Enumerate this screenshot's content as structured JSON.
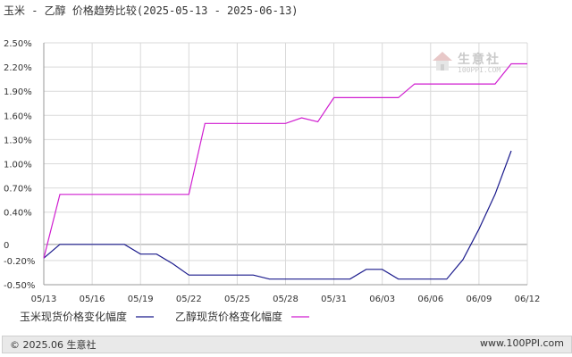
{
  "title": "玉米 - 乙醇 价格趋势比较(2025-05-13 - 2025-06-13)",
  "watermark": {
    "text": "生意社",
    "url": "100PPI.COM"
  },
  "footer": {
    "copyright": "© 2025.06 生意社",
    "site": "www.100PPI.com"
  },
  "colors": {
    "corn": "#1a1a8c",
    "ethanol": "#d01ed0",
    "grid": "#d9d9d9",
    "zero": "#999999"
  },
  "chart_data": {
    "type": "line",
    "title": "玉米 - 乙醇 价格趋势比较(2025-05-13 - 2025-06-13)",
    "xlabel": "",
    "ylabel": "",
    "ylim": [
      -0.5,
      2.5
    ],
    "y_ticks": [
      2.5,
      2.2,
      1.9,
      1.6,
      1.3,
      1.0,
      0.7,
      0.4,
      0,
      -0.2,
      -0.5
    ],
    "y_tick_labels": [
      "2.50%",
      "2.20%",
      "1.90%",
      "1.60%",
      "1.30%",
      "1.00%",
      "0.70%",
      "0.40%",
      "0",
      "-0.20%",
      "-0.50%"
    ],
    "x_ticks": [
      "05/13",
      "05/16",
      "05/19",
      "05/22",
      "05/25",
      "05/28",
      "05/31",
      "06/03",
      "06/06",
      "06/09",
      "06/12"
    ],
    "x_tick_positions": [
      0,
      3,
      6,
      9,
      12,
      15,
      18,
      21,
      24,
      27,
      30
    ],
    "x_max": 30,
    "grid": true,
    "legend_placement": "bottom",
    "series": [
      {
        "name": "玉米现货价格变化幅度",
        "color": "#1a1a8c",
        "points": [
          [
            0,
            -0.17
          ],
          [
            1,
            0
          ],
          [
            2,
            0
          ],
          [
            3,
            0
          ],
          [
            4,
            0
          ],
          [
            5,
            0
          ],
          [
            6,
            -0.12
          ],
          [
            7,
            -0.12
          ],
          [
            8,
            -0.24
          ],
          [
            9,
            -0.38
          ],
          [
            10,
            -0.38
          ],
          [
            11,
            -0.38
          ],
          [
            12,
            -0.38
          ],
          [
            13,
            -0.38
          ],
          [
            14,
            -0.43
          ],
          [
            15,
            -0.43
          ],
          [
            16,
            -0.43
          ],
          [
            17,
            -0.43
          ],
          [
            18,
            -0.43
          ],
          [
            19,
            -0.43
          ],
          [
            20,
            -0.31
          ],
          [
            21,
            -0.31
          ],
          [
            22,
            -0.43
          ],
          [
            23,
            -0.43
          ],
          [
            24,
            -0.43
          ],
          [
            25,
            -0.43
          ],
          [
            26,
            -0.19
          ],
          [
            27,
            0.19
          ],
          [
            28,
            0.62
          ],
          [
            29,
            1.16
          ]
        ]
      },
      {
        "name": "乙醇现货价格变化幅度",
        "color": "#d01ed0",
        "points": [
          [
            0,
            -0.17
          ],
          [
            1,
            0.62
          ],
          [
            2,
            0.62
          ],
          [
            3,
            0.62
          ],
          [
            4,
            0.62
          ],
          [
            5,
            0.62
          ],
          [
            6,
            0.62
          ],
          [
            7,
            0.62
          ],
          [
            8,
            0.62
          ],
          [
            9,
            0.62
          ],
          [
            10,
            1.5
          ],
          [
            11,
            1.5
          ],
          [
            12,
            1.5
          ],
          [
            13,
            1.5
          ],
          [
            14,
            1.5
          ],
          [
            15,
            1.5
          ],
          [
            16,
            1.57
          ],
          [
            17,
            1.52
          ],
          [
            18,
            1.82
          ],
          [
            19,
            1.82
          ],
          [
            20,
            1.82
          ],
          [
            21,
            1.82
          ],
          [
            22,
            1.82
          ],
          [
            23,
            1.99
          ],
          [
            24,
            1.99
          ],
          [
            25,
            1.99
          ],
          [
            26,
            1.99
          ],
          [
            27,
            1.99
          ],
          [
            28,
            1.99
          ],
          [
            29,
            2.24
          ],
          [
            30,
            2.24
          ]
        ]
      }
    ]
  }
}
